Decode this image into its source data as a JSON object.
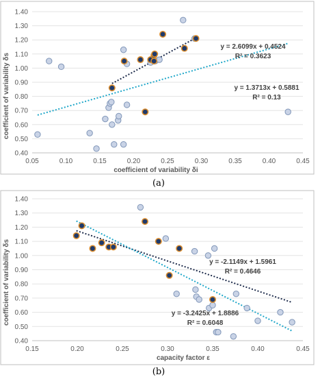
{
  "chart_data": [
    {
      "type": "scatter",
      "panel_label": "(a)",
      "xlabel": "coefficient of variability δi",
      "ylabel": "coefficient of variability δs",
      "xlim": [
        0.05,
        0.45
      ],
      "ylim": [
        0.4,
        1.4
      ],
      "x_ticks": [
        "0.05",
        "0.10",
        "0.15",
        "0.20",
        "0.25",
        "0.30",
        "0.35",
        "0.40",
        "0.45"
      ],
      "y_ticks": [
        "0.40",
        "0.50",
        "0.60",
        "0.70",
        "0.80",
        "0.90",
        "1.00",
        "1.10",
        "1.20",
        "1.30",
        "1.40"
      ],
      "grid": "horizontal",
      "legend": "none",
      "colors": {
        "light_fill": "#c9d3e6",
        "light_edge": "#8096b8",
        "dark_fill": "#1f3a6b",
        "dark_edge": "#d98c2e",
        "trend_all": "#1fa7c9",
        "trend_sub": "#1c2a4a"
      },
      "series": [
        {
          "group": "all",
          "points": [
            [
              0.058,
              0.53
            ],
            [
              0.075,
              1.05
            ],
            [
              0.093,
              1.01
            ],
            [
              0.135,
              0.54
            ],
            [
              0.145,
              0.43
            ],
            [
              0.158,
              0.64
            ],
            [
              0.163,
              0.72
            ],
            [
              0.165,
              0.75
            ],
            [
              0.167,
              0.76
            ],
            [
              0.168,
              0.6
            ],
            [
              0.171,
              0.46
            ],
            [
              0.177,
              0.63
            ],
            [
              0.178,
              0.66
            ],
            [
              0.185,
              1.13
            ],
            [
              0.185,
              0.46
            ],
            [
              0.19,
              1.03
            ],
            [
              0.19,
              0.74
            ],
            [
              0.225,
              1.04
            ],
            [
              0.232,
              1.05
            ],
            [
              0.238,
              1.06
            ],
            [
              0.273,
              1.34
            ],
            [
              0.29,
              1.21
            ],
            [
              0.428,
              0.69
            ]
          ]
        },
        {
          "group": "subset",
          "points": [
            [
              0.168,
              0.86
            ],
            [
              0.186,
              1.05
            ],
            [
              0.21,
              1.06
            ],
            [
              0.217,
              0.69
            ],
            [
              0.225,
              1.06
            ],
            [
              0.23,
              1.05
            ],
            [
              0.23,
              1.09
            ],
            [
              0.231,
              1.1
            ],
            [
              0.243,
              1.24
            ],
            [
              0.275,
              1.14
            ],
            [
              0.292,
              1.21
            ]
          ]
        }
      ],
      "trendlines": [
        {
          "group": "all",
          "equation": "y = 1.3713x + 0.5881",
          "r2": "R² = 0.13",
          "slope": 1.3713,
          "intercept": 0.5881,
          "x_range": [
            0.058,
            0.428
          ]
        },
        {
          "group": "subset",
          "equation": "y = 2.6099x + 0.4524",
          "r2": "R² = 0.3623",
          "slope": 2.6099,
          "intercept": 0.4524,
          "x_range": [
            0.168,
            0.292
          ]
        }
      ]
    },
    {
      "type": "scatter",
      "panel_label": "(b)",
      "xlabel": "capacity factor ε",
      "ylabel": "coefficient of variability δs",
      "xlim": [
        0.15,
        0.45
      ],
      "ylim": [
        0.4,
        1.4
      ],
      "x_ticks": [
        "0.15",
        "0.20",
        "0.25",
        "0.30",
        "0.35",
        "0.40",
        "0.45"
      ],
      "y_ticks": [
        "0.40",
        "0.50",
        "0.60",
        "0.70",
        "0.80",
        "0.90",
        "1.00",
        "1.10",
        "1.20",
        "1.30",
        "1.40"
      ],
      "grid": "horizontal",
      "legend": "none",
      "series": [
        {
          "group": "all",
          "points": [
            [
              0.27,
              1.34
            ],
            [
              0.298,
              1.12
            ],
            [
              0.31,
              0.73
            ],
            [
              0.33,
              1.03
            ],
            [
              0.331,
              0.76
            ],
            [
              0.332,
              0.71
            ],
            [
              0.335,
              0.69
            ],
            [
              0.345,
              1.0
            ],
            [
              0.346,
              0.63
            ],
            [
              0.35,
              0.65
            ],
            [
              0.352,
              1.05
            ],
            [
              0.354,
              0.46
            ],
            [
              0.356,
              0.46
            ],
            [
              0.373,
              0.43
            ],
            [
              0.376,
              0.73
            ],
            [
              0.388,
              0.63
            ],
            [
              0.4,
              0.54
            ],
            [
              0.425,
              0.6
            ],
            [
              0.438,
              0.53
            ]
          ]
        },
        {
          "group": "subset",
          "points": [
            [
              0.199,
              1.14
            ],
            [
              0.205,
              1.21
            ],
            [
              0.217,
              1.05
            ],
            [
              0.227,
              1.09
            ],
            [
              0.235,
              1.06
            ],
            [
              0.24,
              1.06
            ],
            [
              0.275,
              1.24
            ],
            [
              0.29,
              1.1
            ],
            [
              0.302,
              0.86
            ],
            [
              0.313,
              1.05
            ],
            [
              0.35,
              0.69
            ]
          ]
        }
      ],
      "trendlines": [
        {
          "group": "subset",
          "equation": "y = -2.1149x + 1.5961",
          "r2": "R² = 0.4646",
          "slope": -2.1149,
          "intercept": 1.5961,
          "x_range": [
            0.199,
            0.438
          ]
        },
        {
          "group": "all",
          "equation": "y = -3.2425x + 1.8886",
          "r2": "R² = 0.6048",
          "slope": -3.2425,
          "intercept": 1.8886,
          "x_range": [
            0.199,
            0.438
          ]
        }
      ]
    }
  ]
}
